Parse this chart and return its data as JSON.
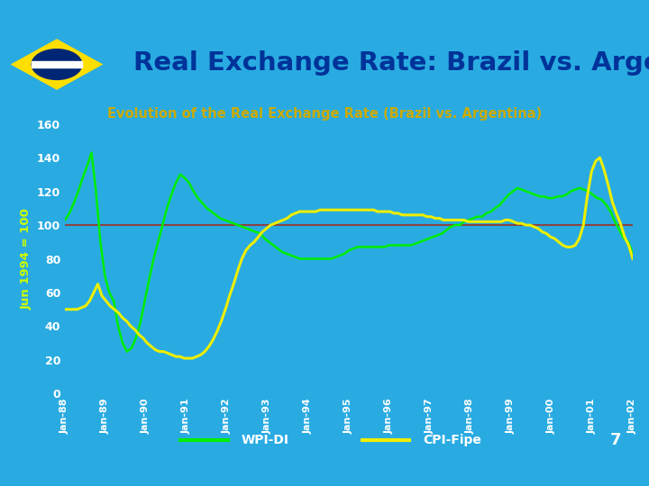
{
  "title": "Real Exchange Rate: Brazil vs. Argentina",
  "subtitle": "Evolution of the Real Exchange Rate (Brazil vs. Argentina)",
  "ylabel": "Jun 1994 = 100",
  "ylim": [
    0,
    160
  ],
  "yticks": [
    0,
    20,
    40,
    60,
    80,
    100,
    120,
    140,
    160
  ],
  "header_bg_color": "#C5DFF0",
  "header_border_color": "#29ABE2",
  "plot_bg_color": "#29ABE2",
  "fig_bg_color": "#29ABE2",
  "title_color": "#003399",
  "subtitle_color": "#CCAA00",
  "ylabel_color": "#CCFF00",
  "tick_color": "#FFFFFF",
  "reference_line_y": 100,
  "reference_line_color": "#884444",
  "wpi_color": "#00EE00",
  "cpi_color": "#EEEE00",
  "legend_label_color": "#FFFFFF",
  "page_number": "7",
  "x_labels": [
    "Jan-88",
    "Jan-89",
    "Jan-90",
    "Jan-91",
    "Jan-92",
    "Jan-93",
    "Jan-94",
    "Jan-95",
    "Jan-96",
    "Jan-97",
    "Jan-98",
    "Jan-99",
    "Jan-00",
    "Jan-01",
    "Jan-02"
  ],
  "wpi_di": [
    103,
    107,
    113,
    120,
    128,
    135,
    143,
    120,
    90,
    70,
    60,
    55,
    40,
    30,
    25,
    27,
    33,
    42,
    55,
    68,
    80,
    90,
    100,
    110,
    118,
    125,
    130,
    128,
    125,
    120,
    116,
    113,
    110,
    108,
    106,
    104,
    103,
    102,
    101,
    100,
    99,
    98,
    97,
    96,
    95,
    92,
    90,
    88,
    86,
    84,
    83,
    82,
    81,
    80,
    80,
    80,
    80,
    80,
    80,
    80,
    80,
    81,
    82,
    83,
    85,
    86,
    87,
    87,
    87,
    87,
    87,
    87,
    87,
    88,
    88,
    88,
    88,
    88,
    88,
    89,
    90,
    91,
    92,
    93,
    94,
    95,
    97,
    99,
    100,
    100,
    102,
    103,
    104,
    105,
    105,
    107,
    108,
    110,
    112,
    115,
    118,
    120,
    122,
    121,
    120,
    119,
    118,
    117,
    117,
    116,
    116,
    117,
    117,
    118,
    120,
    121,
    122,
    121,
    120,
    118,
    116,
    115,
    112,
    108,
    102,
    97,
    92,
    90,
    83
  ],
  "cpi_fipe": [
    50,
    50,
    50,
    50,
    51,
    52,
    55,
    60,
    65,
    58,
    55,
    52,
    50,
    48,
    45,
    43,
    40,
    38,
    35,
    33,
    30,
    28,
    26,
    25,
    25,
    24,
    23,
    22,
    22,
    21,
    21,
    21,
    22,
    23,
    25,
    28,
    32,
    37,
    43,
    50,
    58,
    65,
    73,
    80,
    85,
    88,
    90,
    93,
    96,
    98,
    100,
    101,
    102,
    103,
    104,
    106,
    107,
    108,
    108,
    108,
    108,
    108,
    109,
    109,
    109,
    109,
    109,
    109,
    109,
    109,
    109,
    109,
    109,
    109,
    109,
    109,
    108,
    108,
    108,
    108,
    107,
    107,
    106,
    106,
    106,
    106,
    106,
    106,
    105,
    105,
    104,
    104,
    103,
    103,
    103,
    103,
    103,
    103,
    102,
    102,
    102,
    102,
    102,
    102,
    102,
    102,
    102,
    103,
    103,
    102,
    101,
    101,
    100,
    100,
    99,
    98,
    96,
    95,
    93,
    92,
    90,
    88,
    87,
    87,
    88,
    92,
    100,
    118,
    132,
    138,
    140,
    133,
    124,
    114,
    107,
    101,
    93,
    88,
    80
  ],
  "flag_green": "#009C3B",
  "flag_yellow": "#FFDF00",
  "flag_blue": "#002776"
}
